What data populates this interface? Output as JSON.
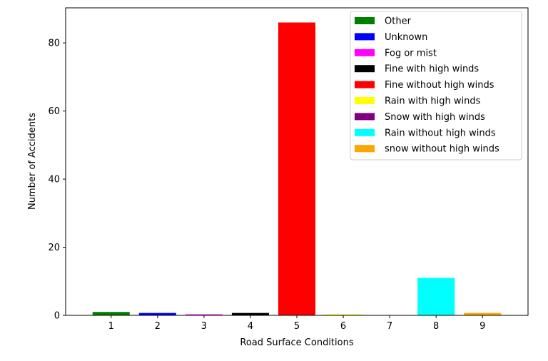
{
  "chart_data": {
    "type": "bar",
    "categories": [
      "1",
      "2",
      "3",
      "4",
      "5",
      "6",
      "7",
      "8",
      "9"
    ],
    "values": [
      1,
      0.7,
      0.3,
      0.7,
      86,
      0.3,
      0,
      11,
      0.7
    ],
    "colors": [
      "#008000",
      "#0000ff",
      "#ff00ff",
      "#000000",
      "#ff0000",
      "#ffff00",
      "#800080",
      "#00ffff",
      "#ffa500"
    ],
    "series_names": [
      "Other",
      "Unknown",
      "Fog or mist",
      "Fine with high winds",
      "Fine without high winds",
      "Rain with high winds",
      "Snow with high winds",
      "Rain without high winds",
      "snow without high winds"
    ],
    "xlabel": "Road Surface Conditions",
    "ylabel": "Number of Accidents",
    "ylim": [
      0,
      90.3
    ],
    "yticks": [
      0,
      20,
      40,
      60,
      80
    ],
    "xlim": [
      0.02,
      9.98
    ],
    "bar_width": 0.8,
    "grid": false,
    "legend_position": "top-right"
  }
}
